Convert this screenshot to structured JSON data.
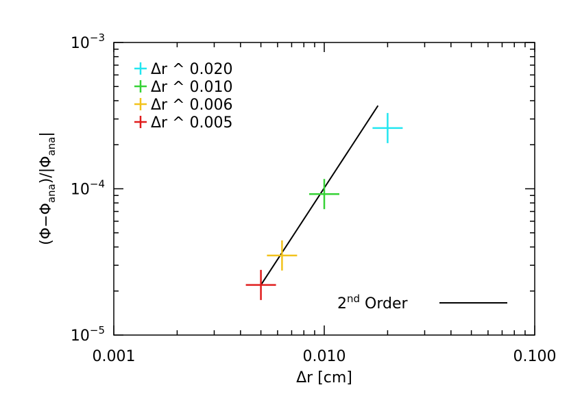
{
  "chart_data": {
    "type": "scatter",
    "xlabel_parts": [
      "Δr [cm]"
    ],
    "ylabel_parts": [
      "(Φ−Φ",
      "ana",
      ")/|Φ",
      "ana",
      "|"
    ],
    "x_scale": "log",
    "y_scale": "log",
    "xlim": [
      0.001,
      0.1
    ],
    "ylim": [
      1e-05,
      0.001
    ],
    "x_ticks": [
      {
        "value": 0.001,
        "label": "0.001"
      },
      {
        "value": 0.01,
        "label": "0.010"
      },
      {
        "value": 0.1,
        "label": "0.100"
      }
    ],
    "y_ticks": [
      {
        "value": 1e-05,
        "base": "10",
        "exp": "−5"
      },
      {
        "value": 0.0001,
        "base": "10",
        "exp": "−4"
      },
      {
        "value": 0.001,
        "base": "10",
        "exp": "−3"
      }
    ],
    "series": [
      {
        "name": "Δr ^ 0.020",
        "x": 0.02,
        "y": 0.00026,
        "color": "#22e6f0"
      },
      {
        "name": "Δr ^ 0.010",
        "x": 0.01,
        "y": 9.2e-05,
        "color": "#36d236"
      },
      {
        "name": "Δr ^ 0.006",
        "x": 0.0063,
        "y": 3.5e-05,
        "color": "#f2c21c"
      },
      {
        "name": "Δr ^ 0.005",
        "x": 0.005,
        "y": 2.2e-05,
        "color": "#e01b1b"
      }
    ],
    "reference_line": {
      "label_main": "2",
      "label_sup": "nd",
      "label_rest": " Order",
      "color": "#000000",
      "x": [
        0.005,
        0.018
      ],
      "y": [
        2.2e-05,
        0.00037
      ]
    },
    "legend_position": "top-left",
    "grid": false
  }
}
